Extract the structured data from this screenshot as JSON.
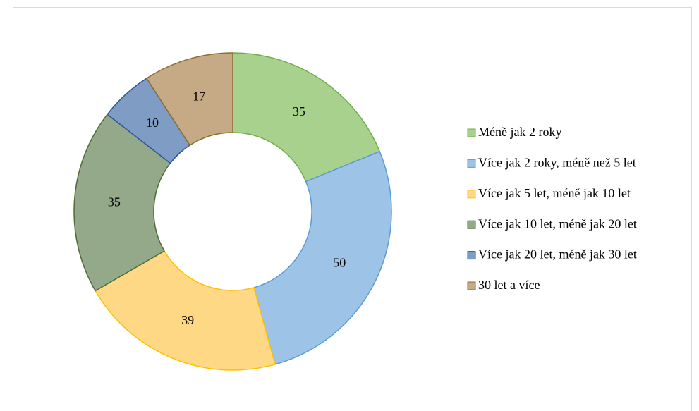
{
  "chart_data": {
    "type": "donut",
    "categories": [
      "Méně jak 2 roky",
      "Více jak 2 roky, méně než 5 let",
      "Více jak 5 let, méně jak 10 let",
      "Více jak 10 let, méně jak 20 let",
      "Více jak 20 let, méně jak 30 let",
      "30 let a více"
    ],
    "values": [
      35,
      50,
      39,
      35,
      10,
      17
    ],
    "colors": [
      "#a9d18e",
      "#9dc3e6",
      "#ffd886",
      "#94a98a",
      "#7f9cc4",
      "#c6a985"
    ],
    "legend": "right"
  }
}
